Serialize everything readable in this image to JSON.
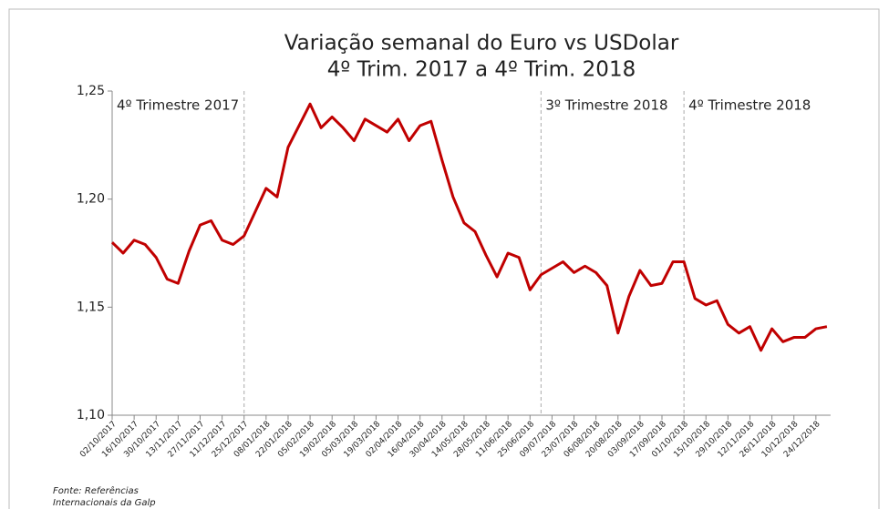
{
  "chart_data": {
    "type": "line",
    "title": [
      "Variação semanal do Euro vs USDolar",
      "4º Trim. 2017 a 4º Trim. 2018"
    ],
    "categories": [
      "02/10/2017",
      null,
      "16/10/2017",
      null,
      "30/10/2017",
      null,
      "13/11/2017",
      null,
      "27/11/2017",
      null,
      "11/12/2017",
      null,
      "25/12/2017",
      null,
      "08/01/2018",
      null,
      "22/01/2018",
      null,
      "05/02/2018",
      null,
      "19/02/2018",
      null,
      "05/03/2018",
      null,
      "19/03/2018",
      null,
      "02/04/2018",
      null,
      "16/04/2018",
      null,
      "30/04/2018",
      null,
      "14/05/2018",
      null,
      "28/05/2018",
      null,
      "11/06/2018",
      null,
      "25/06/2018",
      null,
      "09/07/2018",
      null,
      "23/07/2018",
      null,
      "06/08/2018",
      null,
      "20/08/2018",
      null,
      "03/09/2018",
      null,
      "17/09/2018",
      null,
      "01/10/2018",
      null,
      "15/10/2018",
      null,
      "29/10/2018",
      null,
      "12/11/2018",
      null,
      "26/11/2018",
      null,
      "10/12/2018",
      null,
      "24/12/2018",
      null
    ],
    "series": [
      {
        "color": "#c00000",
        "values": [
          1.18,
          1.175,
          1.181,
          1.179,
          1.173,
          1.163,
          1.161,
          1.176,
          1.188,
          1.19,
          1.181,
          1.179,
          1.183,
          1.194,
          1.205,
          1.201,
          1.224,
          1.234,
          1.244,
          1.233,
          1.238,
          1.233,
          1.227,
          1.237,
          1.234,
          1.231,
          1.237,
          1.227,
          1.234,
          1.236,
          1.218,
          1.201,
          1.189,
          1.185,
          1.174,
          1.164,
          1.175,
          1.173,
          1.158,
          1.165,
          1.168,
          1.171,
          1.166,
          1.169,
          1.166,
          1.16,
          1.138,
          1.155,
          1.167,
          1.16,
          1.161,
          1.171,
          1.171,
          1.154,
          1.151,
          1.153,
          1.142,
          1.138,
          1.141,
          1.13,
          1.14,
          1.134,
          1.136,
          1.136,
          1.14,
          1.141
        ]
      }
    ],
    "ylim": [
      1.1,
      1.25
    ],
    "yticks": [
      {
        "value": 1.1,
        "label": "1,10"
      },
      {
        "value": 1.15,
        "label": "1,15"
      },
      {
        "value": 1.2,
        "label": "1,20"
      },
      {
        "value": 1.25,
        "label": "1,25"
      }
    ],
    "vlines": [
      12,
      39,
      52
    ],
    "period_labels": [
      {
        "label": "4º Trimestre 2017",
        "at": 0
      },
      {
        "label": "3º Trimestre 2018",
        "at": 39
      },
      {
        "label": "4º Trimestre 2018",
        "at": 52
      }
    ],
    "source": [
      "Fonte: Referências",
      "Internacionais da Galp"
    ]
  }
}
